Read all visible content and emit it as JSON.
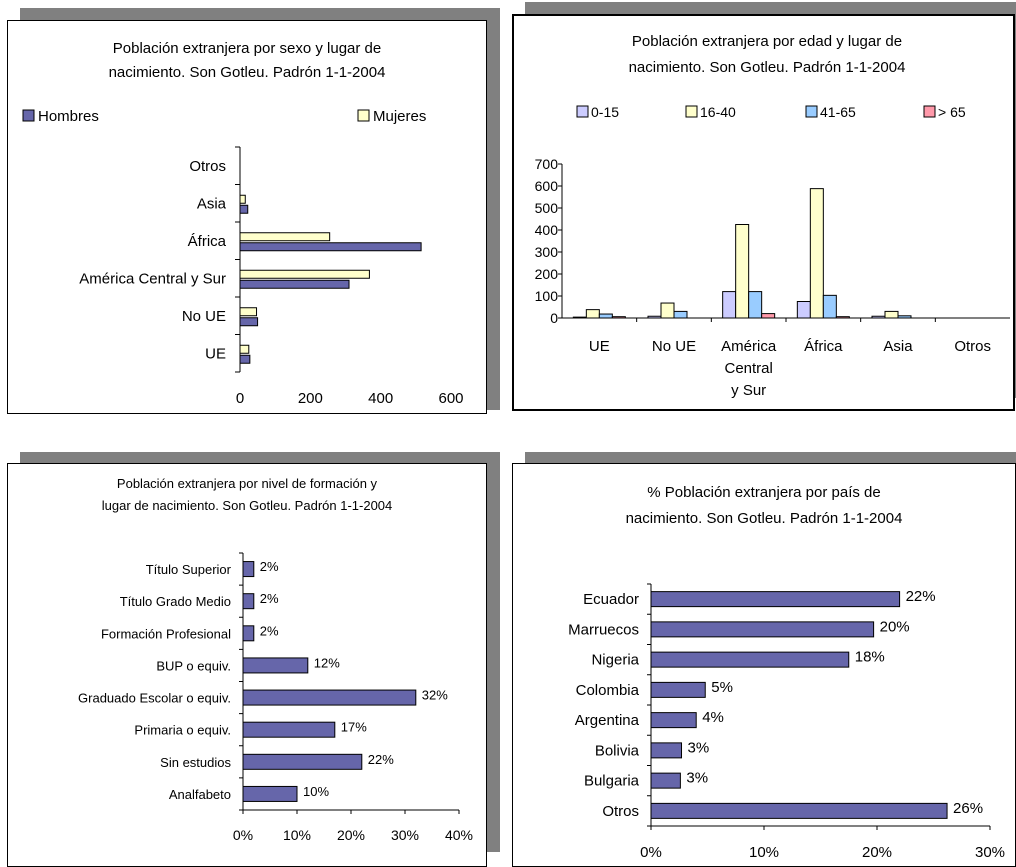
{
  "colors": {
    "hombres": "#6666aa",
    "mujeres": "#ffffcc",
    "age_0_15": "#ccccff",
    "age_16_40": "#ffffcc",
    "age_41_65": "#99ccff",
    "age_65_plus": "#ff99aa",
    "bar": "#6666aa"
  },
  "chart_data": [
    {
      "type": "bar",
      "orientation": "horizontal",
      "title": "Población extranjera por sexo y lugar de nacimiento. Son Gotleu. Padrón 1-1-2004",
      "title_lines": [
        "Población extranjera por sexo y lugar de",
        "nacimiento. Son Gotleu. Padrón 1-1-2004"
      ],
      "categories": [
        "Otros",
        "Asia",
        "África",
        "América Central y Sur",
        "No UE",
        "UE"
      ],
      "series": [
        {
          "name": "Hombres",
          "values": [
            0,
            22,
            515,
            310,
            50,
            28
          ]
        },
        {
          "name": "Mujeres",
          "values": [
            0,
            15,
            255,
            368,
            47,
            25
          ]
        }
      ],
      "xlim": [
        0,
        600
      ],
      "xticks": [
        "0",
        "200",
        "400",
        "600"
      ],
      "legend": "top"
    },
    {
      "type": "bar",
      "orientation": "vertical",
      "title": "Población extranjera por edad y lugar de nacimiento. Son Gotleu. Padrón 1-1-2004",
      "title_lines": [
        "Población extranjera por edad y lugar de",
        "nacimiento. Son Gotleu. Padrón 1-1-2004"
      ],
      "categories": [
        "UE",
        "No UE",
        "América Central y Sur",
        "África",
        "Asia",
        "Otros"
      ],
      "category_lines": [
        [
          "UE"
        ],
        [
          "No UE"
        ],
        [
          "América",
          "Central",
          "y Sur"
        ],
        [
          "África"
        ],
        [
          "Asia"
        ],
        [
          "Otros"
        ]
      ],
      "series": [
        {
          "name": "0-15",
          "values": [
            4,
            8,
            120,
            75,
            8,
            0
          ]
        },
        {
          "name": "16-40",
          "values": [
            38,
            68,
            425,
            588,
            30,
            0
          ]
        },
        {
          "name": "41-65",
          "values": [
            18,
            30,
            120,
            103,
            10,
            0
          ]
        },
        {
          "name": "> 65",
          "values": [
            6,
            0,
            20,
            6,
            0,
            0
          ]
        }
      ],
      "ylim": [
        0,
        700
      ],
      "yticks": [
        "0",
        "100",
        "200",
        "300",
        "400",
        "500",
        "600",
        "700"
      ],
      "legend": "top"
    },
    {
      "type": "bar",
      "orientation": "horizontal",
      "title": "Población extranjera por nivel de formación y lugar de nacimiento. Son Gotleu. Padrón 1-1-2004",
      "title_lines": [
        "Población extranjera por nivel de formación y",
        "lugar de nacimiento. Son Gotleu. Padrón 1-1-2004"
      ],
      "categories": [
        "Título Superior",
        "Título Grado Medio",
        "Formación Profesional",
        "BUP o equiv.",
        "Graduado Escolar o equiv.",
        "Primaria o equiv.",
        "Sin estudios",
        "Analfabeto"
      ],
      "values": [
        2,
        2,
        2,
        12,
        32,
        17,
        22,
        10
      ],
      "labels": [
        "2%",
        "2%",
        "2%",
        "12%",
        "32%",
        "17%",
        "22%",
        "10%"
      ],
      "xlim": [
        0,
        40
      ],
      "xticks": [
        "0%",
        "10%",
        "20%",
        "30%",
        "40%"
      ]
    },
    {
      "type": "bar",
      "orientation": "horizontal",
      "title": "% Población extranjera por país de nacimiento. Son Gotleu. Padrón 1-1-2004",
      "title_lines": [
        "% Población extranjera por país de",
        "nacimiento. Son Gotleu. Padrón 1-1-2004"
      ],
      "categories": [
        "Ecuador",
        "Marruecos",
        "Nigeria",
        "Colombia",
        "Argentina",
        "Bolivia",
        "Bulgaria",
        "Otros"
      ],
      "values": [
        22,
        19.7,
        17.5,
        4.8,
        4,
        2.7,
        2.6,
        26.2
      ],
      "labels": [
        "22%",
        "20%",
        "18%",
        "5%",
        "4%",
        "3%",
        "3%",
        "26%"
      ],
      "xlim": [
        0,
        30
      ],
      "xticks": [
        "0%",
        "10%",
        "20%",
        "30%"
      ]
    }
  ]
}
